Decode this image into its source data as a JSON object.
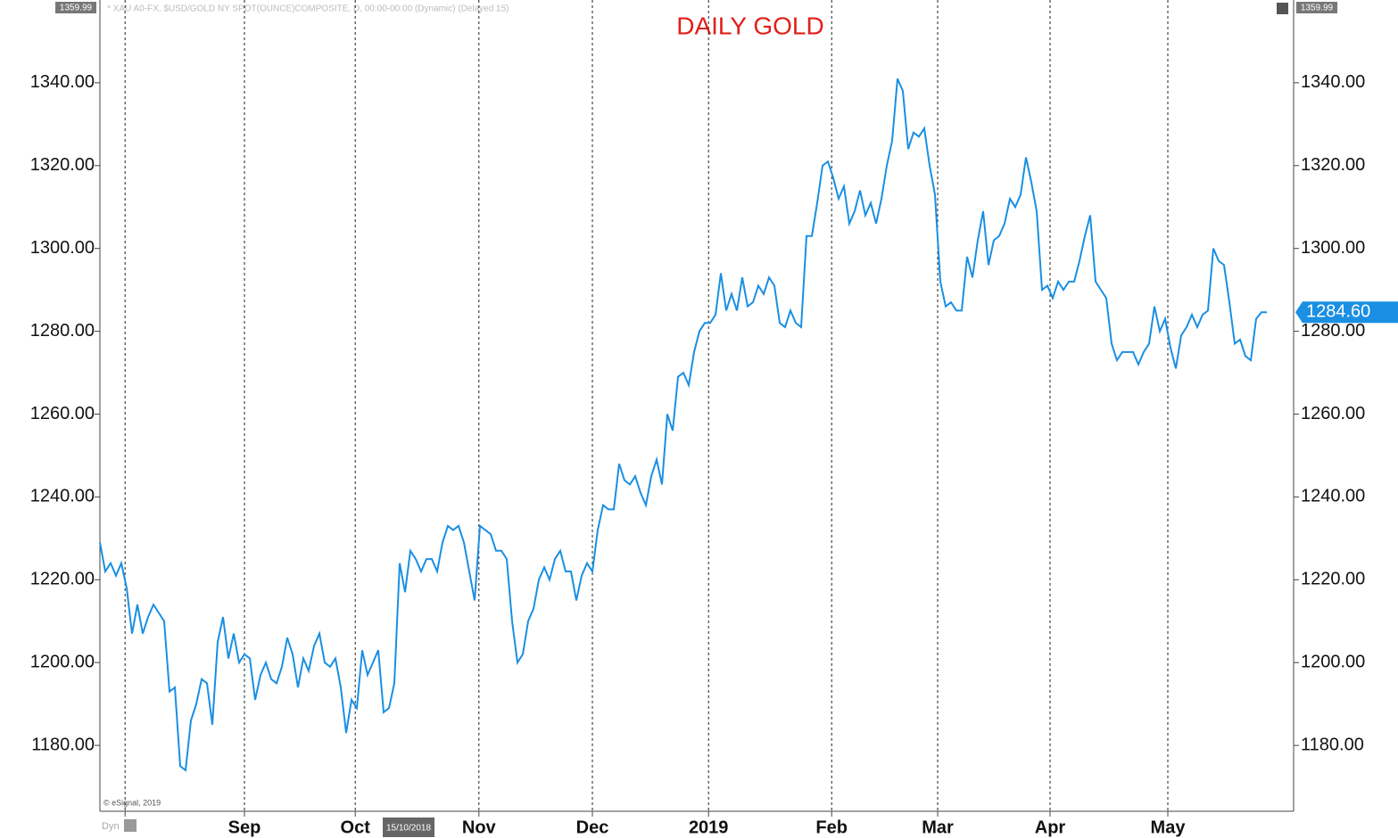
{
  "chart_data": {
    "type": "line",
    "title": "DAILY GOLD",
    "header": "* XAU A0-FX, $USD/GOLD NY SPOT(OUNCE)COMPOSITE, D, 00:00-00:00 (Dynamic) (Delayed 15)",
    "copyright": "© eSignal, 2019",
    "mode_label": "Dyn",
    "date_marker": "15/10/2018",
    "last_value_label": "1284.60",
    "color": "#1a8fe3",
    "series": [
      {
        "name": "XAU A0-FX",
        "color": "#1a8fe3",
        "values": [
          1229,
          1222,
          1224,
          1221,
          1224,
          1218,
          1207,
          1214,
          1207,
          1211,
          1214,
          1212,
          1210,
          1193,
          1194,
          1175,
          1174,
          1186,
          1190,
          1196,
          1195,
          1185,
          1205,
          1211,
          1201,
          1207,
          1200,
          1202,
          1201,
          1191,
          1197,
          1200,
          1196,
          1195,
          1199,
          1206,
          1202,
          1194,
          1201,
          1198,
          1204,
          1207,
          1200,
          1199,
          1201,
          1194,
          1183,
          1191,
          1189,
          1203,
          1197,
          1200,
          1203,
          1188,
          1189,
          1195,
          1224,
          1217,
          1227,
          1225,
          1222,
          1225,
          1225,
          1222,
          1229,
          1233,
          1232,
          1233,
          1229,
          1222,
          1215,
          1233,
          1232,
          1231,
          1227,
          1227,
          1225,
          1210,
          1200,
          1202,
          1210,
          1213,
          1220,
          1223,
          1220,
          1225,
          1227,
          1222,
          1222,
          1215,
          1221,
          1224,
          1222,
          1232,
          1238,
          1237,
          1237,
          1248,
          1244,
          1243,
          1245,
          1241,
          1238,
          1245,
          1249,
          1243,
          1260,
          1256,
          1269,
          1270,
          1267,
          1275,
          1280,
          1282,
          1282,
          1284,
          1294,
          1285,
          1289,
          1285,
          1293,
          1286,
          1287,
          1291,
          1289,
          1293,
          1291,
          1282,
          1281,
          1285,
          1282,
          1281,
          1303,
          1303,
          1311,
          1320,
          1321,
          1317,
          1312,
          1315,
          1306,
          1309,
          1314,
          1308,
          1311,
          1306,
          1312,
          1320,
          1326,
          1341,
          1338,
          1324,
          1328,
          1327,
          1329,
          1320,
          1313,
          1292,
          1286,
          1287,
          1285,
          1285,
          1298,
          1293,
          1302,
          1309,
          1296,
          1302,
          1303,
          1306,
          1312,
          1310,
          1313,
          1322,
          1316,
          1309,
          1290,
          1291,
          1288,
          1292,
          1290,
          1292,
          1292,
          1297,
          1303,
          1308,
          1292,
          1290,
          1288,
          1277,
          1273,
          1275,
          1275,
          1275,
          1272,
          1275,
          1277,
          1286,
          1280,
          1283,
          1276,
          1271,
          1279,
          1281,
          1284,
          1281,
          1284,
          1285,
          1300,
          1297,
          1296,
          1287,
          1277,
          1278,
          1274,
          1273,
          1283,
          1284.6,
          1284.6
        ]
      }
    ],
    "xlim": [
      0,
      223
    ],
    "xticks": [
      {
        "value": 4.7,
        "label": ""
      },
      {
        "value": 27,
        "label": "Sep"
      },
      {
        "value": 47.7,
        "label": "Oct"
      },
      {
        "value": 70.8,
        "label": "Nov"
      },
      {
        "value": 92,
        "label": "Dec"
      },
      {
        "value": 113.7,
        "label": "2019"
      },
      {
        "value": 136.7,
        "label": "Feb"
      },
      {
        "value": 156.5,
        "label": "Mar"
      },
      {
        "value": 177.5,
        "label": "Apr"
      },
      {
        "value": 199.5,
        "label": "May"
      }
    ],
    "ylim": [
      1164.1,
      1359.99
    ],
    "yticks": [
      {
        "value": 1180,
        "label": "1180.00"
      },
      {
        "value": 1200,
        "label": "1200.00"
      },
      {
        "value": 1220,
        "label": "1220.00"
      },
      {
        "value": 1240,
        "label": "1240.00"
      },
      {
        "value": 1260,
        "label": "1260.00"
      },
      {
        "value": 1280,
        "label": "1280.00"
      },
      {
        "value": 1300,
        "label": "1300.00"
      },
      {
        "value": 1320,
        "label": "1320.00"
      },
      {
        "value": 1340,
        "label": "1340.00"
      }
    ],
    "grid": true
  }
}
